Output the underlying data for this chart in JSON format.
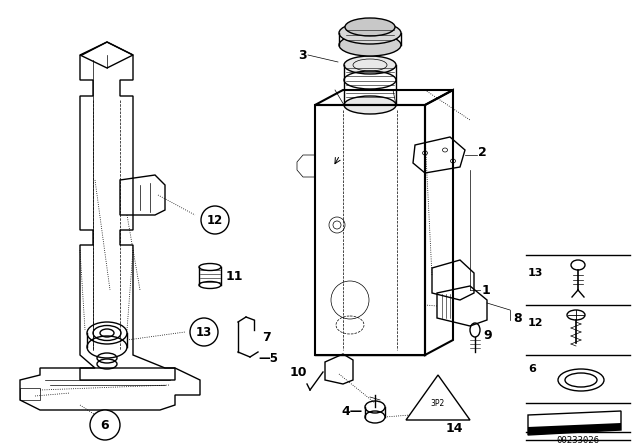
{
  "bg_color": "#ffffff",
  "part_number_text": "00233026",
  "fig_width": 6.4,
  "fig_height": 4.48,
  "dpi": 100,
  "black": "#000000",
  "gray_light": "#cccccc",
  "gray_mid": "#999999",
  "lw_main": 1.0,
  "lw_thin": 0.5,
  "lw_thick": 1.5,
  "font_label": 8.5,
  "font_small": 6.5,
  "font_circle": 7.5,
  "font_pn": 6.5
}
